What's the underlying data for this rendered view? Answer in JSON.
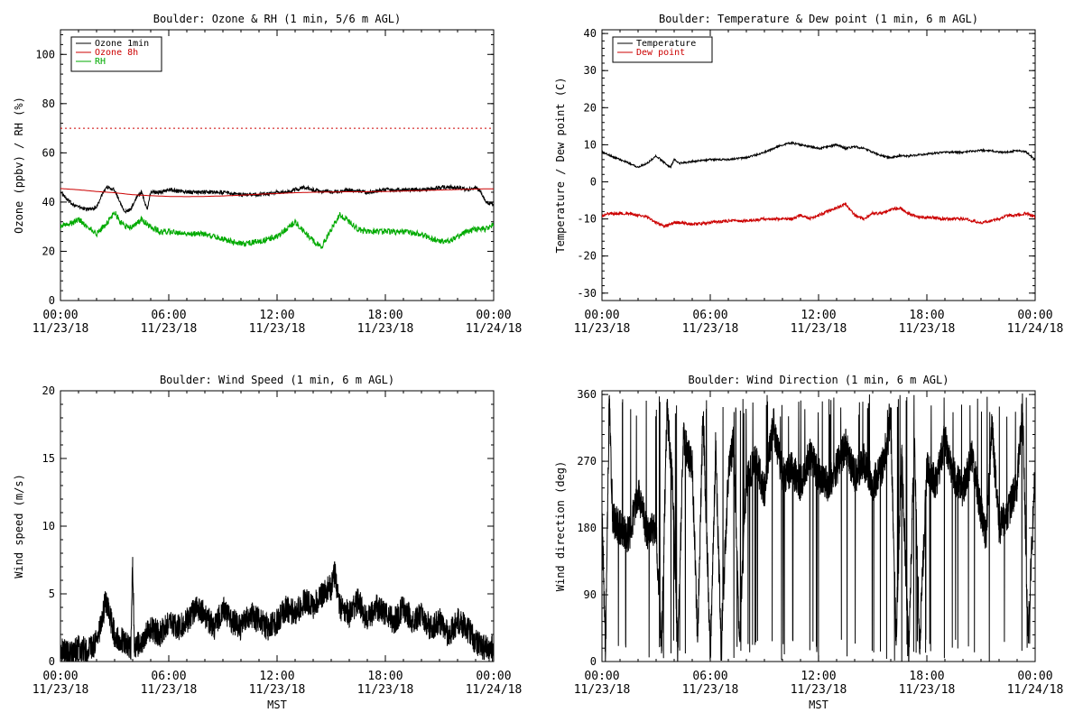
{
  "chart_data": [
    {
      "type": "line",
      "title": "Boulder: Ozone & RH (1 min, 5/6 m AGL)",
      "xlabel": "",
      "ylabel": "Ozone (ppbv) / RH (%)",
      "ylim": [
        0,
        110
      ],
      "yticks": [
        0,
        20,
        40,
        60,
        80,
        100
      ],
      "xticks": [
        "00:00\n11/23/18",
        "06:00\n11/23/18",
        "12:00\n11/23/18",
        "18:00\n11/23/18",
        "00:00\n11/24/18"
      ],
      "legend_position": "top-left",
      "series": [
        {
          "name": "Ozone 1min",
          "color": "#000000",
          "x": [
            0,
            0.5,
            1,
            1.5,
            2,
            2.3,
            2.6,
            3,
            3.3,
            3.6,
            3.9,
            4.2,
            4.5,
            4.8,
            5,
            5.5,
            6,
            7,
            8,
            9,
            10,
            11,
            12,
            12.5,
            13,
            13.5,
            14,
            15,
            16,
            17,
            18,
            19,
            20,
            21,
            22,
            22.5,
            23,
            23.3,
            23.6,
            24
          ],
          "values": [
            44,
            40,
            38,
            37,
            38,
            43,
            46,
            45,
            40,
            36,
            37,
            42,
            44,
            37,
            44,
            44,
            45,
            44,
            44,
            44,
            43,
            43,
            44,
            44,
            45,
            46,
            45,
            44,
            45,
            44,
            45,
            45,
            45,
            46,
            46,
            45,
            46,
            44,
            40,
            39
          ]
        },
        {
          "name": "Ozone 8h",
          "color": "#cc0000",
          "x": [
            0,
            1,
            2,
            3,
            4,
            5,
            6,
            7,
            8,
            9,
            10,
            11,
            12,
            13,
            14,
            15,
            16,
            17,
            18,
            19,
            20,
            21,
            22,
            23,
            24
          ],
          "values": [
            45.5,
            45,
            44.3,
            43.8,
            43,
            42.6,
            42.3,
            42.2,
            42.3,
            42.5,
            42.8,
            43.2,
            43.5,
            43.8,
            44,
            44.1,
            44.2,
            44.2,
            44.3,
            44.5,
            44.7,
            44.9,
            45.1,
            45.3,
            45.4
          ]
        },
        {
          "name": "RH",
          "color": "#00aa00",
          "x": [
            0,
            0.5,
            1,
            1.5,
            2,
            2.5,
            2.8,
            3,
            3.3,
            3.6,
            4,
            4.5,
            5,
            5.5,
            6,
            7,
            8,
            8.5,
            9,
            9.5,
            10,
            11,
            11.5,
            12,
            12.5,
            13,
            13.5,
            14,
            14.5,
            15,
            15.5,
            16,
            16.5,
            17,
            18,
            19,
            20,
            21,
            21.5,
            22,
            22.5,
            23,
            23.5,
            24
          ],
          "values": [
            30,
            31,
            33,
            30,
            27,
            31,
            34,
            36,
            32,
            30,
            30,
            33,
            30,
            28,
            28,
            27,
            27,
            26,
            25,
            24,
            23,
            24,
            25,
            26,
            29,
            32,
            28,
            24,
            22,
            29,
            35,
            32,
            29,
            28,
            28,
            28,
            27,
            24,
            24,
            26,
            28,
            29,
            29,
            31
          ]
        },
        {
          "name": "",
          "color": "#cc0000",
          "style": "dotted",
          "x": [
            0,
            24
          ],
          "values": [
            70,
            70
          ]
        }
      ]
    },
    {
      "type": "line",
      "title": "Boulder: Temperature & Dew point (1 min, 6 m AGL)",
      "xlabel": "",
      "ylabel": "Temperature / Dew point (C)",
      "ylim": [
        -32,
        41
      ],
      "yticks": [
        -30,
        -20,
        -10,
        0,
        10,
        20,
        30,
        40
      ],
      "xticks": [
        "00:00\n11/23/18",
        "06:00\n11/23/18",
        "12:00\n11/23/18",
        "18:00\n11/23/18",
        "00:00\n11/24/18"
      ],
      "legend_position": "top-left",
      "series": [
        {
          "name": "Temperature",
          "color": "#000000",
          "x": [
            0,
            0.5,
            1,
            1.5,
            2,
            2.5,
            3,
            3.5,
            3.8,
            4,
            4.3,
            5,
            6,
            7,
            8,
            9,
            9.5,
            10,
            10.5,
            11,
            11.5,
            12,
            12.5,
            13,
            13.5,
            14,
            14.5,
            15,
            15.5,
            16,
            16.5,
            17,
            18,
            19,
            20,
            21,
            21.5,
            22,
            22.5,
            23,
            23.5,
            24
          ],
          "values": [
            8,
            7,
            6,
            5,
            4,
            5,
            7,
            5,
            4,
            6,
            5,
            5.5,
            6,
            6,
            6.5,
            8,
            9,
            10,
            10.5,
            10,
            9.5,
            9,
            9.5,
            10,
            9,
            9.5,
            9,
            8,
            7,
            6.5,
            7,
            7,
            7.5,
            8,
            8,
            8.5,
            8.5,
            8,
            8,
            8.5,
            8,
            6
          ]
        },
        {
          "name": "Dew point",
          "color": "#cc0000",
          "x": [
            0,
            0.5,
            1,
            1.5,
            2,
            2.5,
            3,
            3.5,
            4,
            4.5,
            5,
            6,
            7,
            8,
            9,
            10,
            10.5,
            11,
            11.5,
            12,
            12.5,
            13,
            13.5,
            14,
            14.5,
            15,
            15.5,
            16,
            16.5,
            17,
            17.5,
            18,
            19,
            20,
            21,
            22,
            22.5,
            23,
            23.5,
            24
          ],
          "values": [
            -9,
            -8.5,
            -8.5,
            -8.5,
            -9,
            -9.5,
            -11,
            -12,
            -11,
            -11,
            -11.5,
            -11,
            -10.5,
            -10.5,
            -10,
            -10,
            -10,
            -9,
            -10,
            -9,
            -8,
            -7,
            -6,
            -9,
            -10,
            -8.5,
            -8.5,
            -7.5,
            -7,
            -8.5,
            -9.5,
            -9.5,
            -10,
            -10,
            -11,
            -10,
            -9,
            -9,
            -8.5,
            -9.5
          ]
        }
      ]
    },
    {
      "type": "line",
      "title": "Boulder: Wind Speed (1 min, 6 m AGL)",
      "xlabel": "MST",
      "ylabel": "Wind speed (m/s)",
      "ylim": [
        0,
        20
      ],
      "yticks": [
        0,
        5,
        10,
        15,
        20
      ],
      "xticks": [
        "00:00\n11/23/18",
        "06:00\n11/23/18",
        "12:00\n11/23/18",
        "18:00\n11/23/18",
        "00:00\n11/24/18"
      ],
      "series": [
        {
          "name": "",
          "color": "#000000",
          "x": [
            0,
            0.5,
            1,
            1.5,
            2,
            2.3,
            2.5,
            3,
            3.5,
            3.9,
            4,
            4.1,
            4.5,
            5,
            5.5,
            6,
            6.5,
            7,
            7.5,
            8,
            8.5,
            9,
            9.5,
            10,
            10.5,
            11,
            11.5,
            12,
            12.5,
            13,
            13.5,
            14,
            14.5,
            15,
            15.2,
            15.5,
            16,
            16.5,
            17,
            17.5,
            18,
            18.5,
            19,
            19.5,
            20,
            20.5,
            21,
            21.5,
            22,
            22.5,
            23,
            23.5,
            24
          ],
          "values": [
            1,
            0.5,
            1,
            0.8,
            1.5,
            3,
            4.5,
            2,
            1.5,
            1,
            7.4,
            1,
            1.5,
            2.5,
            2,
            3,
            2.5,
            3,
            4,
            3.5,
            2.5,
            4,
            3,
            2.5,
            3.5,
            3,
            2.5,
            3,
            4,
            3.5,
            4.5,
            4,
            5,
            5.5,
            6.5,
            4,
            3.5,
            4.5,
            3,
            4,
            3.5,
            3,
            4,
            3,
            3.5,
            2.5,
            3,
            2,
            3,
            2.5,
            1.5,
            1,
            1
          ]
        }
      ]
    },
    {
      "type": "line",
      "title": "Boulder: Wind Direction (1 min, 6 m AGL)",
      "xlabel": "MST",
      "ylabel": "Wind direction (deg)",
      "ylim": [
        0,
        365
      ],
      "yticks": [
        0,
        90,
        180,
        270,
        360
      ],
      "xticks": [
        "00:00\n11/23/18",
        "06:00\n11/23/18",
        "12:00\n11/23/18",
        "18:00\n11/23/18",
        "00:00\n11/24/18"
      ],
      "series": [
        {
          "name": "",
          "color": "#000000",
          "x": [
            0,
            0.2,
            0.4,
            0.6,
            1,
            1.5,
            2,
            2.5,
            3,
            3.3,
            3.6,
            3.9,
            4.2,
            4.5,
            5,
            5.3,
            5.6,
            6,
            6.3,
            6.6,
            7,
            7.3,
            7.6,
            8,
            8.5,
            9,
            9.5,
            10,
            10.5,
            11,
            11.5,
            12,
            12.5,
            13,
            13.5,
            14,
            14.5,
            15,
            15.5,
            16,
            16.3,
            16.6,
            17,
            17.3,
            17.6,
            18,
            18.5,
            19,
            19.5,
            20,
            20.5,
            21,
            21.3,
            21.6,
            22,
            22.5,
            23,
            23.3,
            23.6,
            24
          ],
          "values": [
            200,
            10,
            350,
            190,
            180,
            170,
            230,
            175,
            180,
            20,
            340,
            250,
            10,
            300,
            260,
            30,
            340,
            10,
            290,
            20,
            250,
            300,
            30,
            240,
            270,
            230,
            320,
            250,
            260,
            240,
            280,
            250,
            240,
            260,
            290,
            250,
            270,
            240,
            260,
            320,
            30,
            280,
            10,
            300,
            20,
            260,
            240,
            300,
            250,
            230,
            280,
            200,
            170,
            320,
            180,
            200,
            240,
            350,
            30,
            260
          ]
        }
      ]
    }
  ]
}
